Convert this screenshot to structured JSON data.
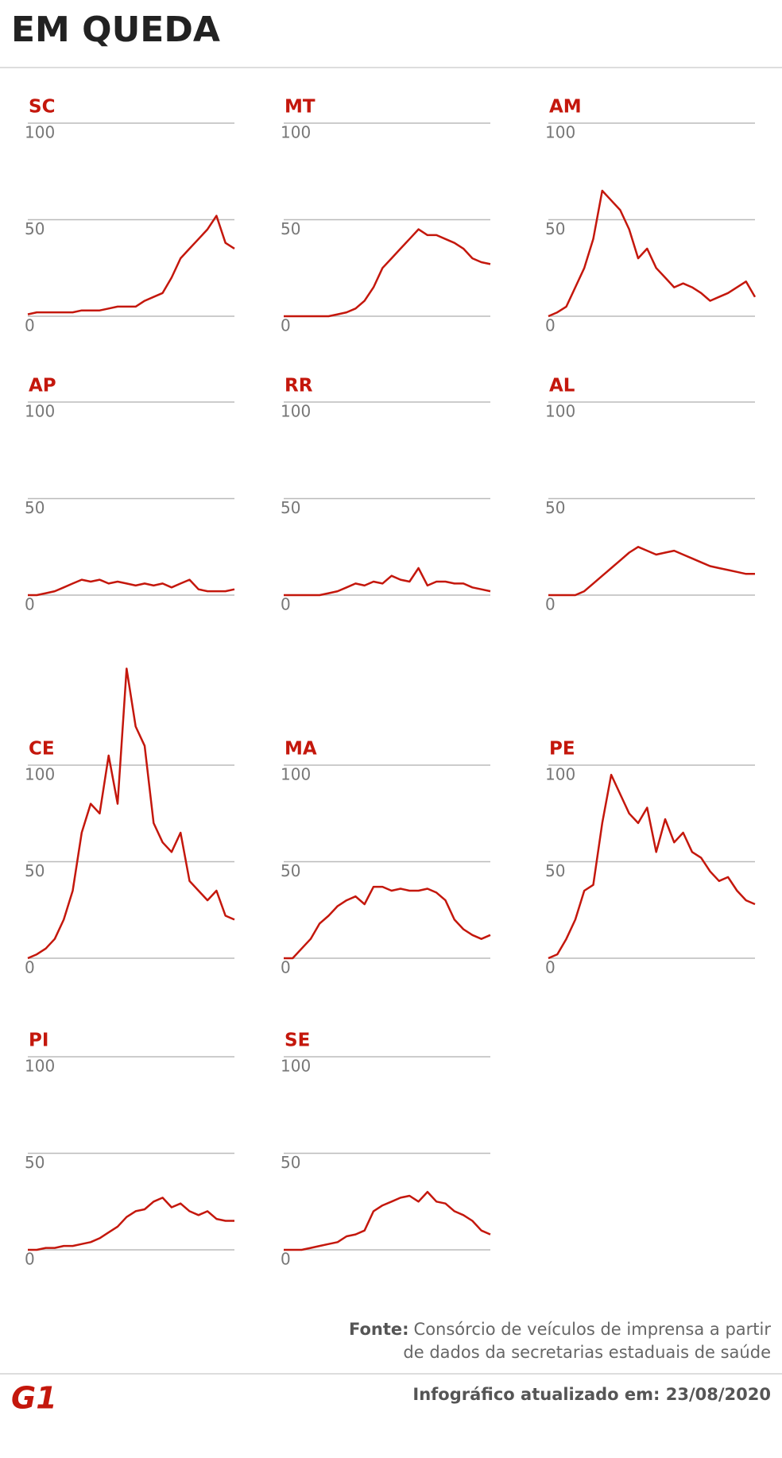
{
  "title": "EM QUEDA",
  "chart_data": [
    {
      "type": "line",
      "title": "SC",
      "categories": [
        null,
        null,
        null,
        null,
        null,
        null,
        null,
        null,
        null,
        null,
        null,
        null,
        null,
        null,
        null,
        null,
        null,
        null,
        null,
        null,
        null,
        null,
        null,
        null
      ],
      "values": [
        1,
        2,
        2,
        2,
        2,
        2,
        3,
        3,
        3,
        4,
        5,
        5,
        5,
        8,
        10,
        12,
        20,
        30,
        35,
        40,
        45,
        52,
        38,
        35
      ],
      "color": "#c4170c",
      "ylim": [
        0,
        100
      ],
      "yticks": [
        0,
        50,
        100
      ],
      "grid": true
    },
    {
      "type": "line",
      "title": "MT",
      "categories": [
        null,
        null,
        null,
        null,
        null,
        null,
        null,
        null,
        null,
        null,
        null,
        null,
        null,
        null,
        null,
        null,
        null,
        null,
        null,
        null,
        null,
        null,
        null,
        null
      ],
      "values": [
        0,
        0,
        0,
        0,
        0,
        0,
        1,
        2,
        4,
        8,
        15,
        25,
        30,
        35,
        40,
        45,
        42,
        42,
        40,
        38,
        35,
        30,
        28,
        27
      ],
      "color": "#c4170c",
      "ylim": [
        0,
        100
      ],
      "yticks": [
        0,
        50,
        100
      ],
      "grid": true
    },
    {
      "type": "line",
      "title": "AM",
      "categories": [
        null,
        null,
        null,
        null,
        null,
        null,
        null,
        null,
        null,
        null,
        null,
        null,
        null,
        null,
        null,
        null,
        null,
        null,
        null,
        null,
        null,
        null,
        null,
        null
      ],
      "values": [
        0,
        2,
        5,
        15,
        25,
        40,
        65,
        60,
        55,
        45,
        30,
        35,
        25,
        20,
        15,
        17,
        15,
        12,
        8,
        10,
        12,
        15,
        18,
        10
      ],
      "color": "#c4170c",
      "ylim": [
        0,
        100
      ],
      "yticks": [
        0,
        50,
        100
      ],
      "grid": true
    },
    {
      "type": "line",
      "title": "AP",
      "categories": [
        null,
        null,
        null,
        null,
        null,
        null,
        null,
        null,
        null,
        null,
        null,
        null,
        null,
        null,
        null,
        null,
        null,
        null,
        null,
        null,
        null,
        null,
        null,
        null
      ],
      "values": [
        0,
        0,
        1,
        2,
        4,
        6,
        8,
        7,
        8,
        6,
        7,
        6,
        5,
        6,
        5,
        6,
        4,
        6,
        8,
        3,
        2,
        2,
        2,
        3
      ],
      "color": "#c4170c",
      "ylim": [
        0,
        100
      ],
      "yticks": [
        0,
        50,
        100
      ],
      "grid": true
    },
    {
      "type": "line",
      "title": "RR",
      "categories": [
        null,
        null,
        null,
        null,
        null,
        null,
        null,
        null,
        null,
        null,
        null,
        null,
        null,
        null,
        null,
        null,
        null,
        null,
        null,
        null,
        null,
        null,
        null,
        null
      ],
      "values": [
        0,
        0,
        0,
        0,
        0,
        1,
        2,
        4,
        6,
        5,
        7,
        6,
        10,
        8,
        7,
        14,
        5,
        7,
        7,
        6,
        6,
        4,
        3,
        2
      ],
      "color": "#c4170c",
      "ylim": [
        0,
        100
      ],
      "yticks": [
        0,
        50,
        100
      ],
      "grid": true
    },
    {
      "type": "line",
      "title": "AL",
      "categories": [
        null,
        null,
        null,
        null,
        null,
        null,
        null,
        null,
        null,
        null,
        null,
        null,
        null,
        null,
        null,
        null,
        null,
        null,
        null,
        null,
        null,
        null,
        null,
        null
      ],
      "values": [
        0,
        0,
        0,
        0,
        2,
        6,
        10,
        14,
        18,
        22,
        25,
        23,
        21,
        22,
        23,
        21,
        19,
        17,
        15,
        14,
        13,
        12,
        11,
        11
      ],
      "color": "#c4170c",
      "ylim": [
        0,
        100
      ],
      "yticks": [
        0,
        50,
        100
      ],
      "grid": true
    },
    {
      "type": "line",
      "title": "CE",
      "categories": [
        null,
        null,
        null,
        null,
        null,
        null,
        null,
        null,
        null,
        null,
        null,
        null,
        null,
        null,
        null,
        null,
        null,
        null,
        null,
        null,
        null,
        null,
        null,
        null
      ],
      "values": [
        0,
        2,
        5,
        10,
        20,
        35,
        65,
        80,
        75,
        105,
        80,
        150,
        120,
        110,
        70,
        60,
        55,
        65,
        40,
        35,
        30,
        35,
        22,
        20
      ],
      "color": "#c4170c",
      "ylim": [
        0,
        100
      ],
      "yticks": [
        0,
        50,
        100
      ],
      "grid": true
    },
    {
      "type": "line",
      "title": "MA",
      "categories": [
        null,
        null,
        null,
        null,
        null,
        null,
        null,
        null,
        null,
        null,
        null,
        null,
        null,
        null,
        null,
        null,
        null,
        null,
        null,
        null,
        null,
        null,
        null,
        null
      ],
      "values": [
        0,
        0,
        5,
        10,
        18,
        22,
        27,
        30,
        32,
        28,
        37,
        37,
        35,
        36,
        35,
        35,
        36,
        34,
        30,
        20,
        15,
        12,
        10,
        12
      ],
      "color": "#c4170c",
      "ylim": [
        0,
        100
      ],
      "yticks": [
        0,
        50,
        100
      ],
      "grid": true
    },
    {
      "type": "line",
      "title": "PE",
      "categories": [
        null,
        null,
        null,
        null,
        null,
        null,
        null,
        null,
        null,
        null,
        null,
        null,
        null,
        null,
        null,
        null,
        null,
        null,
        null,
        null,
        null,
        null,
        null,
        null
      ],
      "values": [
        0,
        2,
        10,
        20,
        35,
        38,
        70,
        95,
        85,
        75,
        70,
        78,
        55,
        72,
        60,
        65,
        55,
        52,
        45,
        40,
        42,
        35,
        30,
        28
      ],
      "color": "#c4170c",
      "ylim": [
        0,
        100
      ],
      "yticks": [
        0,
        50,
        100
      ],
      "grid": true
    },
    {
      "type": "line",
      "title": "PI",
      "categories": [
        null,
        null,
        null,
        null,
        null,
        null,
        null,
        null,
        null,
        null,
        null,
        null,
        null,
        null,
        null,
        null,
        null,
        null,
        null,
        null,
        null,
        null,
        null,
        null
      ],
      "values": [
        0,
        0,
        1,
        1,
        2,
        2,
        3,
        4,
        6,
        9,
        12,
        17,
        20,
        21,
        25,
        27,
        22,
        24,
        20,
        18,
        20,
        16,
        15,
        15
      ],
      "color": "#c4170c",
      "ylim": [
        0,
        100
      ],
      "yticks": [
        0,
        50,
        100
      ],
      "grid": true
    },
    {
      "type": "line",
      "title": "SE",
      "categories": [
        null,
        null,
        null,
        null,
        null,
        null,
        null,
        null,
        null,
        null,
        null,
        null,
        null,
        null,
        null,
        null,
        null,
        null,
        null,
        null,
        null,
        null,
        null,
        null
      ],
      "values": [
        0,
        0,
        0,
        1,
        2,
        3,
        4,
        7,
        8,
        10,
        20,
        23,
        25,
        27,
        28,
        25,
        30,
        25,
        24,
        20,
        18,
        15,
        10,
        8
      ],
      "color": "#c4170c",
      "ylim": [
        0,
        100
      ],
      "yticks": [
        0,
        50,
        100
      ],
      "grid": true
    }
  ],
  "source": {
    "label": "Fonte:",
    "line1": "Consórcio de veículos de imprensa a partir",
    "line2": "de dados da secretarias estaduais de saúde"
  },
  "updated": "Infográfico atualizado em: 23/08/2020",
  "logo": "G1"
}
